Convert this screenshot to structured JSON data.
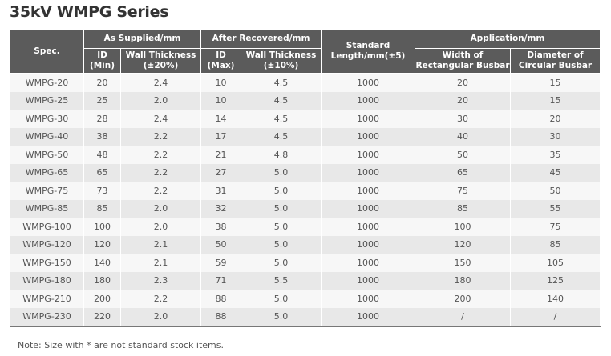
{
  "title": "35kV WMPG Series",
  "headers": {
    "spec": "Spec.",
    "as_supplied": "As Supplied/mm",
    "after_recovered": "After Recovered/mm",
    "standard_length": "Standard Length/mm(±5)",
    "application": "Application/mm",
    "id_min": "ID (Min)",
    "wall_20": "Wall Thickness (±20%)",
    "id_max": "ID (Max)",
    "wall_10": "Wall Thickness (±10%)",
    "width_rect": "Width of Rectangular Busbar",
    "dia_circ": "Diameter of Circular Busbar"
  },
  "rows": [
    [
      "WMPG-20",
      "20",
      "2.4",
      "10",
      "4.5",
      "1000",
      "20",
      "15"
    ],
    [
      "WMPG-25",
      "25",
      "2.0",
      "10",
      "4.5",
      "1000",
      "20",
      "15"
    ],
    [
      "WMPG-30",
      "28",
      "2.4",
      "14",
      "4.5",
      "1000",
      "30",
      "20"
    ],
    [
      "WMPG-40",
      "38",
      "2.2",
      "17",
      "4.5",
      "1000",
      "40",
      "30"
    ],
    [
      "WMPG-50",
      "48",
      "2.2",
      "21",
      "4.8",
      "1000",
      "50",
      "35"
    ],
    [
      "WMPG-65",
      "65",
      "2.2",
      "27",
      "5.0",
      "1000",
      "65",
      "45"
    ],
    [
      "WMPG-75",
      "73",
      "2.2",
      "31",
      "5.0",
      "1000",
      "75",
      "50"
    ],
    [
      "WMPG-85",
      "85",
      "2.0",
      "32",
      "5.0",
      "1000",
      "85",
      "55"
    ],
    [
      "WMPG-100",
      "100",
      "2.0",
      "38",
      "5.0",
      "1000",
      "100",
      "75"
    ],
    [
      "WMPG-120",
      "120",
      "2.1",
      "50",
      "5.0",
      "1000",
      "120",
      "85"
    ],
    [
      "WMPG-150",
      "140",
      "2.1",
      "59",
      "5.0",
      "1000",
      "150",
      "105"
    ],
    [
      "WMPG-180",
      "180",
      "2.3",
      "71",
      "5.5",
      "1000",
      "180",
      "125"
    ],
    [
      "WMPG-210",
      "200",
      "2.2",
      "88",
      "5.0",
      "1000",
      "200",
      "140"
    ],
    [
      "WMPG-230",
      "220",
      "2.0",
      "88",
      "5.0",
      "1000",
      "/",
      "/"
    ]
  ],
  "note": "Note: Size with * are not standard stock items."
}
